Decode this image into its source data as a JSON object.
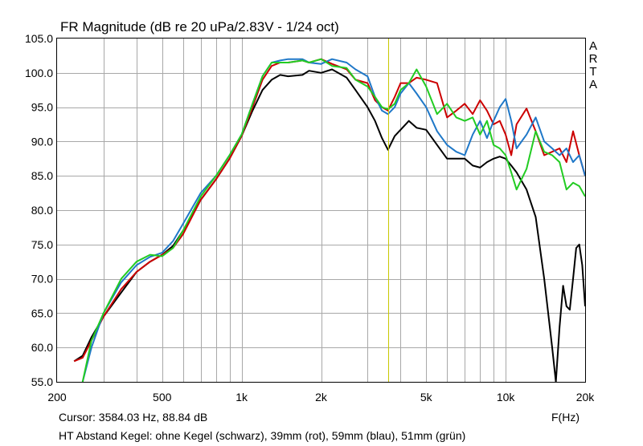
{
  "chart_data": {
    "type": "line",
    "title": "FR Magnitude (dB re 20 uPa/2.83V - 1/24 oct)",
    "xlabel": "F(Hz)",
    "ylabel": "",
    "x_scale": "log",
    "xlim": [
      200,
      20000
    ],
    "ylim": [
      55,
      105
    ],
    "x_ticks": [
      200,
      500,
      1000,
      2000,
      5000,
      10000,
      20000
    ],
    "x_tick_labels": [
      "200",
      "500",
      "1k",
      "2k",
      "5k",
      "10k",
      "20k"
    ],
    "y_ticks": [
      55,
      60,
      65,
      70,
      75,
      80,
      85,
      90,
      95,
      100,
      105
    ],
    "y_tick_labels": [
      "55.0",
      "60.0",
      "65.0",
      "70.0",
      "75.0",
      "80.0",
      "85.0",
      "90.0",
      "95.0",
      "100.0",
      "105.0"
    ],
    "grid": true,
    "watermark": [
      "A",
      "R",
      "T",
      "A"
    ],
    "cursor": {
      "x": 3584.03,
      "y": 88.84,
      "color": "#c8c800"
    },
    "cursor_text": "Cursor: 3584.03 Hz, 88.84 dB",
    "caption": "HT Abstand Kegel: ohne Kegel (schwarz), 39mm (rot), 59mm (blau), 51mm (grün)",
    "series": [
      {
        "color": "#000000",
        "x": [
          232,
          250,
          270,
          300,
          350,
          400,
          450,
          500,
          550,
          600,
          700,
          800,
          900,
          1000,
          1100,
          1200,
          1300,
          1400,
          1500,
          1700,
          1800,
          2000,
          2200,
          2500,
          2700,
          3000,
          3200,
          3400,
          3584,
          3800,
          4000,
          4300,
          4600,
          5000,
          5500,
          6000,
          6500,
          7000,
          7500,
          8000,
          8500,
          9000,
          9500,
          10000,
          10500,
          11000,
          12000,
          13000,
          14000,
          15000,
          15500,
          16000,
          16500,
          17000,
          17500,
          18000,
          18500,
          19000,
          19500,
          20000
        ],
        "y": [
          58,
          58.8,
          61.5,
          64.5,
          68,
          71,
          72.5,
          73.5,
          74.8,
          77,
          81.5,
          84.5,
          87.5,
          90.8,
          94.5,
          97.5,
          99,
          99.7,
          99.5,
          99.7,
          100.3,
          100,
          100.5,
          99.3,
          97.5,
          95,
          93,
          90.5,
          88.8,
          90.8,
          91.7,
          93,
          92,
          91.7,
          89.5,
          87.5,
          87.5,
          87.5,
          86.5,
          86.2,
          87,
          87.5,
          87.8,
          87.5,
          86.5,
          85.5,
          83,
          79,
          70,
          60,
          55,
          63,
          69,
          66,
          65.5,
          70,
          74.5,
          75,
          72,
          66
        ]
      },
      {
        "color": "#cc0000",
        "x": [
          232,
          250,
          270,
          300,
          350,
          400,
          450,
          500,
          550,
          600,
          700,
          800,
          900,
          1000,
          1100,
          1200,
          1300,
          1400,
          1500,
          1700,
          1800,
          2000,
          2200,
          2500,
          2700,
          3000,
          3200,
          3400,
          3584,
          3800,
          4000,
          4300,
          4600,
          5000,
          5500,
          6000,
          6500,
          7000,
          7500,
          8000,
          8500,
          9000,
          9500,
          10000,
          10500,
          11000,
          12000,
          13000,
          14000,
          15000,
          16000,
          17000,
          18000,
          19000,
          20000
        ],
        "y": [
          58,
          58.5,
          61,
          64.5,
          68.5,
          71,
          72.5,
          73.5,
          74.5,
          76.5,
          81.5,
          84.5,
          87.5,
          90.8,
          95,
          99,
          101,
          101.5,
          101.5,
          101.8,
          101.5,
          102,
          101.3,
          100.5,
          99,
          98.5,
          96,
          95,
          94.5,
          96.5,
          98.5,
          98.5,
          99.3,
          99,
          98.5,
          93.5,
          94.5,
          95.5,
          94,
          96,
          94.5,
          92.5,
          93,
          91,
          88,
          92.5,
          94.8,
          91.5,
          88,
          88.5,
          89,
          87,
          91.5,
          88,
          85
        ]
      },
      {
        "color": "#1f78c8",
        "x": [
          250,
          270,
          300,
          350,
          400,
          450,
          500,
          550,
          600,
          700,
          800,
          900,
          1000,
          1100,
          1200,
          1300,
          1400,
          1500,
          1700,
          1800,
          2000,
          2200,
          2500,
          2700,
          3000,
          3200,
          3400,
          3584,
          3800,
          4000,
          4300,
          4600,
          5000,
          5500,
          6000,
          6500,
          7000,
          7500,
          8000,
          8500,
          9000,
          9500,
          10000,
          10500,
          11000,
          12000,
          13000,
          14000,
          15000,
          16000,
          17000,
          18000,
          19000,
          20000
        ],
        "y": [
          55,
          60,
          65,
          69.5,
          72,
          73.2,
          73.8,
          75.5,
          78,
          82.5,
          85,
          88,
          91,
          95.5,
          99.5,
          101.5,
          101.8,
          102,
          102,
          101.5,
          101.3,
          102,
          101.5,
          100.5,
          99.5,
          96.5,
          94.5,
          94,
          95,
          97,
          98.5,
          97,
          95,
          91.5,
          89.5,
          88.5,
          88,
          91,
          93,
          90.5,
          93,
          95,
          96.2,
          93,
          89,
          91,
          93.5,
          90,
          89,
          88,
          89,
          87,
          88,
          85
        ]
      },
      {
        "color": "#22cc22",
        "x": [
          250,
          270,
          300,
          350,
          400,
          450,
          500,
          550,
          600,
          700,
          800,
          900,
          1000,
          1100,
          1200,
          1300,
          1400,
          1500,
          1700,
          1800,
          2000,
          2200,
          2500,
          2700,
          3000,
          3200,
          3400,
          3584,
          3800,
          4000,
          4300,
          4600,
          5000,
          5500,
          6000,
          6500,
          7000,
          7500,
          8000,
          8500,
          9000,
          9500,
          10000,
          10500,
          11000,
          12000,
          13000,
          14000,
          15000,
          16000,
          17000,
          18000,
          19000,
          20000
        ],
        "y": [
          55,
          61,
          65,
          70,
          72.5,
          73.5,
          73.3,
          74.5,
          77,
          82,
          85,
          88,
          91,
          95.5,
          99.5,
          101.5,
          101.5,
          101.5,
          101.8,
          101.5,
          102,
          101,
          100.7,
          99,
          98,
          96.5,
          95,
          94.7,
          95.5,
          97.5,
          98.5,
          100.5,
          98,
          94,
          95.5,
          93.5,
          93,
          93.5,
          91,
          93,
          89.5,
          89,
          88,
          85.5,
          83,
          86,
          91.5,
          88.5,
          88,
          87,
          83,
          84,
          83.5,
          82
        ]
      }
    ]
  }
}
